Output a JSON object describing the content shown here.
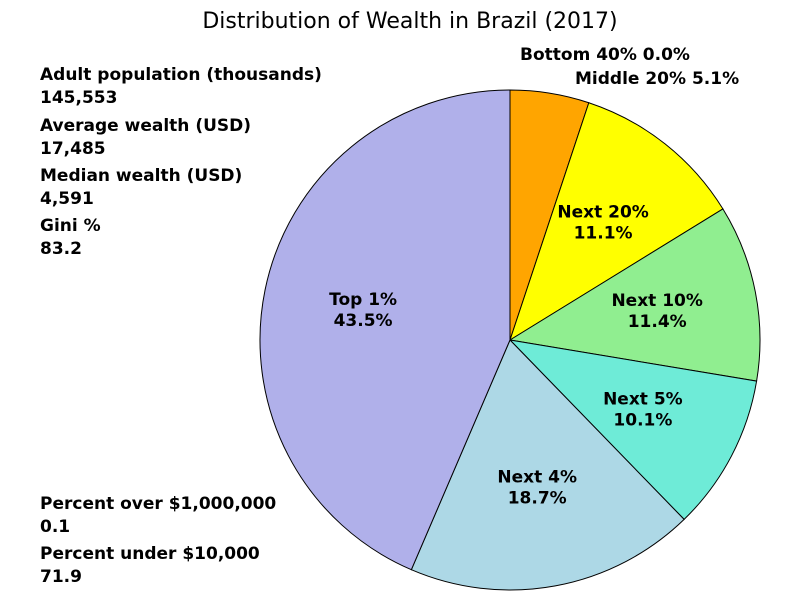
{
  "chart_data": {
    "type": "pie",
    "title": "Distribution of Wealth in Brazil (2017)",
    "slices": [
      {
        "name": "Bottom 40%",
        "value": 0.0,
        "value_label": "0.0%",
        "color": "#000000"
      },
      {
        "name": "Middle 20%",
        "value": 5.1,
        "value_label": "5.1%",
        "color": "#ffa500"
      },
      {
        "name": "Next 20%",
        "value": 11.1,
        "value_label": "11.1%",
        "color": "#ffff00"
      },
      {
        "name": "Next 10%",
        "value": 11.4,
        "value_label": "11.4%",
        "color": "#90ee90"
      },
      {
        "name": "Next 5%",
        "value": 10.1,
        "value_label": "10.1%",
        "color": "#6eebd7"
      },
      {
        "name": "Next 4%",
        "value": 18.7,
        "value_label": "18.7%",
        "color": "#add8e6"
      },
      {
        "name": "Top 1%",
        "value": 43.5,
        "value_label": "43.5%",
        "color": "#b0b0ea"
      }
    ],
    "outside_labels": [
      {
        "text": "Bottom 40% 0.0%"
      },
      {
        "text": "Middle 20% 5.1%"
      }
    ],
    "start_angle": "12 o'clock",
    "direction": "clockwise"
  },
  "stats_top": [
    {
      "label": "Adult population (thousands)",
      "value": "145,553"
    },
    {
      "label": "Average wealth (USD)",
      "value": "17,485"
    },
    {
      "label": "Median wealth (USD)",
      "value": "4,591"
    },
    {
      "label": "Gini %",
      "value": "83.2"
    }
  ],
  "stats_bottom": [
    {
      "label": "Percent over $1,000,000",
      "value": "0.1"
    },
    {
      "label": "Percent under $10,000",
      "value": "71.9"
    }
  ]
}
